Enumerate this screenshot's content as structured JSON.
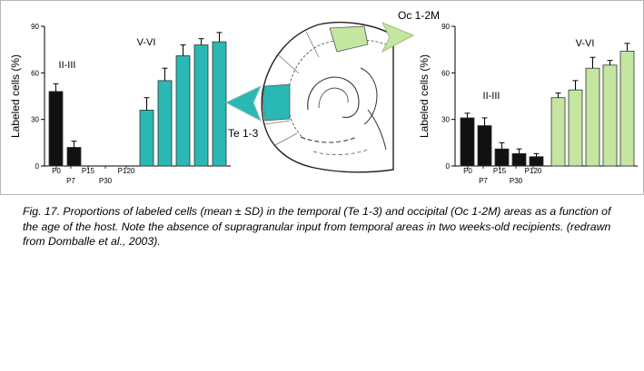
{
  "chart_data": [
    {
      "type": "bar",
      "area": "Te 1-3",
      "ylabel": "Labeled cells (%)",
      "ylim": [
        0,
        90
      ],
      "yticks": [
        "0",
        "30",
        "60",
        "90"
      ],
      "categories": [
        "P0",
        "P7",
        "P15",
        "P30",
        "P120"
      ],
      "series": [
        {
          "name": "II-III",
          "color": "#111111",
          "values": [
            48,
            12,
            0,
            0,
            0
          ],
          "errors": [
            5,
            4,
            0,
            0,
            0
          ]
        },
        {
          "name": "V-VI",
          "color": "#2ab8b4",
          "values": [
            36,
            55,
            71,
            78,
            80
          ],
          "errors": [
            8,
            8,
            7,
            4,
            6
          ]
        }
      ]
    },
    {
      "type": "bar",
      "area": "Oc 1-2M",
      "ylabel": "Labeled cells (%)",
      "ylim": [
        0,
        90
      ],
      "yticks": [
        "0",
        "30",
        "60",
        "90"
      ],
      "categories": [
        "P0",
        "P7",
        "P15",
        "P30",
        "P120"
      ],
      "series": [
        {
          "name": "II-III",
          "color": "#111111",
          "values": [
            31,
            26,
            11,
            8,
            6
          ],
          "errors": [
            3,
            5,
            4,
            3,
            2
          ]
        },
        {
          "name": "V-VI",
          "color": "#c4e6a0",
          "values": [
            44,
            49,
            63,
            65,
            74
          ],
          "errors": [
            3,
            6,
            7,
            3,
            5
          ]
        }
      ]
    }
  ],
  "diagram": {
    "label_te": "Te 1-3",
    "label_oc": "Oc 1-2M",
    "te_color": "#2ab8b4",
    "oc_color": "#c4e6a0"
  },
  "caption": "Fig. 17. Proportions of labeled cells (mean ± SD) in the temporal (Te 1-3) and occipital (Oc 1-2M) areas as a function of the age of the host. Note the absence of supragranular input from temporal areas in two weeks-old recipients. (redrawn from Domballe et al., 2003)."
}
